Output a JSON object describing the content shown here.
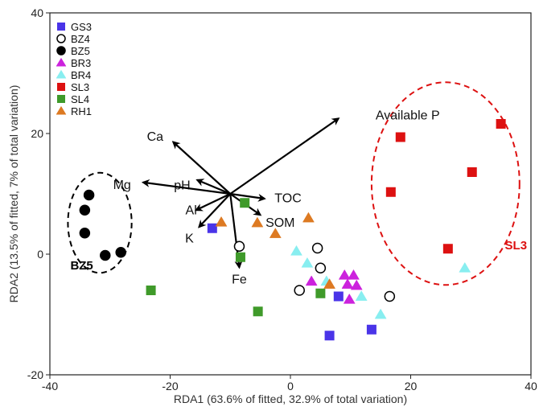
{
  "chart_data": {
    "type": "scatter",
    "xlabel": "RDA1 (63.6% of fitted, 32.9% of total variation)",
    "ylabel": "RDA2 (13.5% of fitted, 7% of total variation)",
    "xlim": [
      -40,
      40
    ],
    "ylim": [
      -20,
      40
    ],
    "xticks": [
      -40,
      -20,
      0,
      20,
      40
    ],
    "yticks": [
      -20,
      0,
      20,
      40
    ],
    "grid": false,
    "legend_position": "top-left",
    "series": [
      {
        "name": "GS3",
        "marker": "square",
        "color": "#4a34e8",
        "fill": true,
        "points": [
          [
            -13,
            4.3
          ],
          [
            8,
            -7
          ],
          [
            6.5,
            -13.5
          ],
          [
            13.5,
            -12.5
          ]
        ]
      },
      {
        "name": "BZ4",
        "marker": "circle",
        "color": "#000000",
        "fill": false,
        "points": [
          [
            -8.5,
            1.3
          ],
          [
            4.5,
            1
          ],
          [
            5,
            -2.3
          ],
          [
            1.5,
            -6
          ],
          [
            16.5,
            -7
          ]
        ]
      },
      {
        "name": "BZ5",
        "marker": "circle",
        "color": "#000000",
        "fill": true,
        "points": [
          [
            -33.5,
            9.8
          ],
          [
            -34.2,
            7.3
          ],
          [
            -34.2,
            3.5
          ],
          [
            -30.8,
            -0.2
          ],
          [
            -28.2,
            0.3
          ]
        ]
      },
      {
        "name": "BR3",
        "marker": "triangle-up",
        "color": "#cc22dd",
        "fill": true,
        "points": [
          [
            3.5,
            -4.5
          ],
          [
            9,
            -3.5
          ],
          [
            10.5,
            -3.5
          ],
          [
            9.5,
            -5
          ],
          [
            11,
            -5.2
          ],
          [
            9.8,
            -7.5
          ]
        ]
      },
      {
        "name": "BR4",
        "marker": "triangle-up",
        "color": "#88eef0",
        "fill": true,
        "points": [
          [
            1,
            0.5
          ],
          [
            2.8,
            -1.5
          ],
          [
            6,
            -4.5
          ],
          [
            11.8,
            -7
          ],
          [
            15,
            -10
          ],
          [
            29,
            -2.3
          ]
        ]
      },
      {
        "name": "SL3",
        "marker": "square",
        "color": "#dd1111",
        "fill": true,
        "points": [
          [
            18.3,
            19.4
          ],
          [
            16.7,
            10.3
          ],
          [
            26.2,
            0.9
          ],
          [
            30.2,
            13.6
          ],
          [
            35,
            21.6
          ]
        ]
      },
      {
        "name": "SL4",
        "marker": "square",
        "color": "#3f9a2a",
        "fill": true,
        "points": [
          [
            -8.3,
            -0.5
          ],
          [
            -7.6,
            8.5
          ],
          [
            -23.2,
            -6
          ],
          [
            -5.4,
            -9.5
          ],
          [
            5,
            -6.5
          ]
        ]
      },
      {
        "name": "RH1",
        "marker": "triangle-up",
        "color": "#dd7a22",
        "fill": true,
        "points": [
          [
            -11.5,
            5.3
          ],
          [
            -5.5,
            5.2
          ],
          [
            -2.5,
            3.4
          ],
          [
            3,
            6
          ],
          [
            6.5,
            -5
          ]
        ]
      }
    ],
    "vectors": [
      {
        "name": "Available P",
        "start": [
          -10,
          10
        ],
        "end": [
          8,
          22.5
        ],
        "label_at": [
          19.5,
          23
        ]
      },
      {
        "name": "Ca",
        "start": [
          -10,
          10
        ],
        "end": [
          -19.5,
          18.6
        ],
        "label_at": [
          -22.5,
          19.5
        ]
      },
      {
        "name": "pH",
        "start": [
          -10,
          10
        ],
        "end": [
          -15.5,
          12.3
        ],
        "label_at": [
          -18,
          11.4
        ]
      },
      {
        "name": "Mg",
        "start": [
          -10,
          10
        ],
        "end": [
          -24.5,
          11.9
        ],
        "label_at": [
          -28,
          11.5
        ]
      },
      {
        "name": "Al",
        "start": [
          -10,
          10
        ],
        "end": [
          -15.7,
          7.3
        ],
        "label_at": [
          -16.5,
          7.3
        ]
      },
      {
        "name": "K",
        "start": [
          -10,
          10
        ],
        "end": [
          -15.2,
          4.5
        ],
        "label_at": [
          -16.8,
          2.6
        ]
      },
      {
        "name": "TOC",
        "start": [
          -10,
          10
        ],
        "end": [
          -4.3,
          9.2
        ],
        "label_at": [
          -0.4,
          9.3
        ]
      },
      {
        "name": "SOM",
        "start": [
          -10,
          10
        ],
        "end": [
          -5,
          6.5
        ],
        "label_at": [
          -1.7,
          5.2
        ]
      },
      {
        "name": "Fe",
        "start": [
          -10,
          10
        ],
        "end": [
          -8.5,
          -2.2
        ],
        "label_at": [
          -8.5,
          -4.2
        ]
      }
    ],
    "ellipses": [
      {
        "label": "BZ5",
        "color": "#000000",
        "center": [
          -31.7,
          5.2
        ],
        "rx": 5.3,
        "ry": 8.3,
        "rotation_deg": 0,
        "label_at": [
          -34.7,
          -2.5
        ]
      },
      {
        "label": "SL3",
        "color": "#dd1111",
        "center": [
          25.8,
          11.7
        ],
        "rx": 12.3,
        "ry": 16.8,
        "rotation_deg": 0,
        "label_at": [
          37.5,
          0.8
        ]
      }
    ]
  }
}
